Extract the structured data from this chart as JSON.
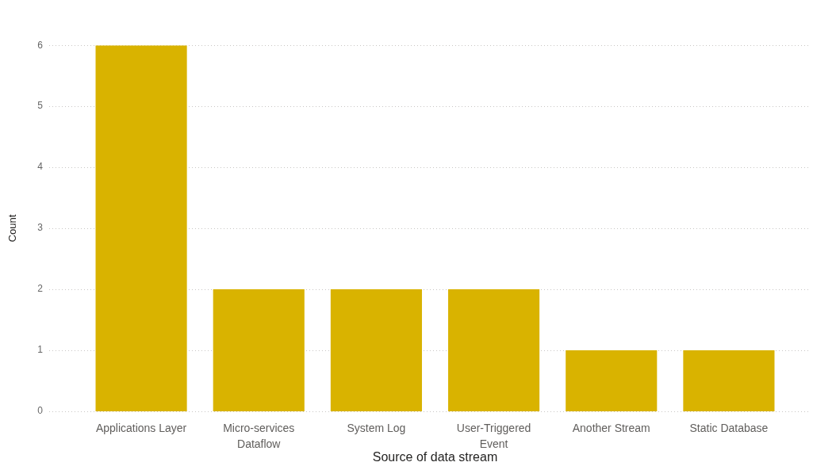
{
  "chart_data": {
    "type": "bar",
    "xlabel": "Source of data stream",
    "ylabel": "Count",
    "categories": [
      "Applications Layer",
      "Micro-services Dataflow",
      "System Log",
      "User-Triggered Event",
      "Another Stream",
      "Static Database"
    ],
    "values": [
      6,
      2,
      2,
      2,
      1,
      1
    ],
    "color": "#d9b300",
    "ylim": [
      0,
      6
    ],
    "yticks": [
      0,
      1,
      2,
      3,
      4,
      5,
      6
    ],
    "grid": "y"
  }
}
